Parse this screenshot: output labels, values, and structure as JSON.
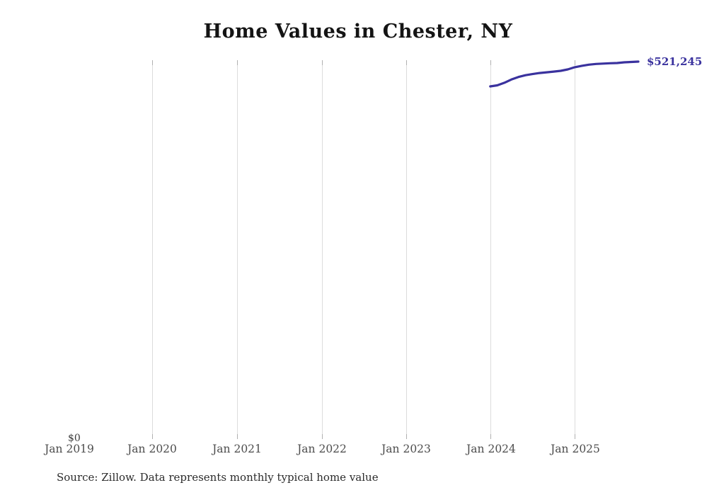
{
  "page": {
    "background_color": "#ffffff"
  },
  "chart_data": {
    "type": "line",
    "title": "Home Values in Chester, NY",
    "source_note": "Source: Zillow. Data represents monthly typical home value",
    "x_tick_labels": [
      "Jan 2019",
      "Jan 2020",
      "Jan 2021",
      "Jan 2022",
      "Jan 2023",
      "Jan 2024",
      "Jan 2025"
    ],
    "y_axis": {
      "zero_label": "$0",
      "min": 0
    },
    "end_label": "$521,245",
    "line_color": "#3a329e",
    "grid": true,
    "legend": "none",
    "x_range_years": [
      2019,
      2025.95
    ],
    "series": [
      {
        "name": "Monthly typical home value",
        "points": [
          {
            "date": "2024-01",
            "value": 487000
          },
          {
            "date": "2024-02",
            "value": 488500
          },
          {
            "date": "2024-03",
            "value": 492000
          },
          {
            "date": "2024-04",
            "value": 496500
          },
          {
            "date": "2024-05",
            "value": 500000
          },
          {
            "date": "2024-06",
            "value": 502500
          },
          {
            "date": "2024-07",
            "value": 504000
          },
          {
            "date": "2024-08",
            "value": 505500
          },
          {
            "date": "2024-09",
            "value": 506500
          },
          {
            "date": "2024-10",
            "value": 507500
          },
          {
            "date": "2024-11",
            "value": 508500
          },
          {
            "date": "2024-12",
            "value": 510500
          },
          {
            "date": "2025-01",
            "value": 513500
          },
          {
            "date": "2025-02",
            "value": 515500
          },
          {
            "date": "2025-03",
            "value": 517000
          },
          {
            "date": "2025-04",
            "value": 518000
          },
          {
            "date": "2025-05",
            "value": 518500
          },
          {
            "date": "2025-06",
            "value": 519000
          },
          {
            "date": "2025-07",
            "value": 519300
          },
          {
            "date": "2025-08",
            "value": 520300
          },
          {
            "date": "2025-09",
            "value": 520800
          },
          {
            "date": "2025-10",
            "value": 521245
          }
        ]
      }
    ]
  }
}
